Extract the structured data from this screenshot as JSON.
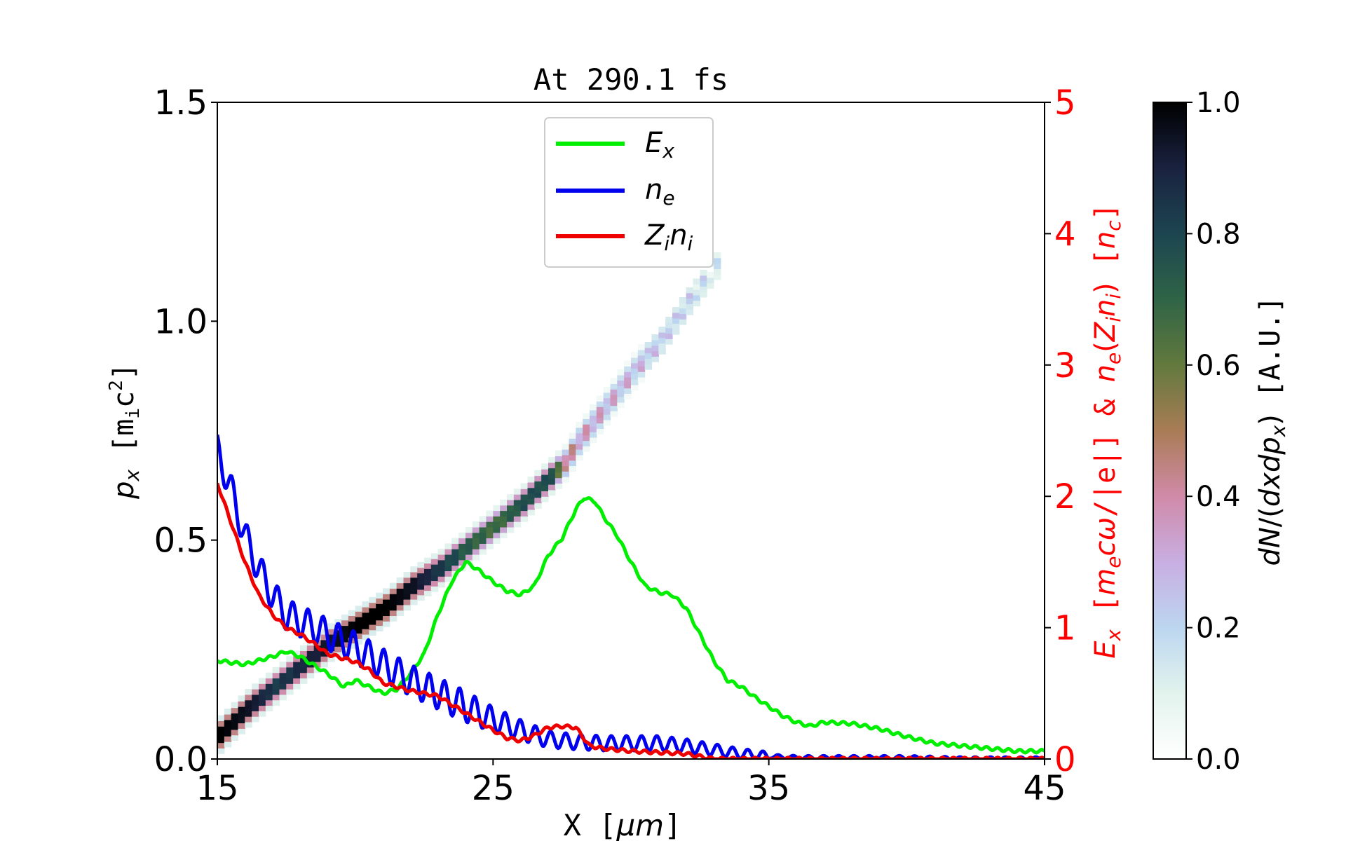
{
  "chart_data": {
    "type": "heatmap",
    "title": "At 290.1 fs",
    "xlabel": "X [μm]",
    "ylabel_left": "p_x [m_i c^2]",
    "ylabel_right": "E_x [m_e c ω / |e|] & n_e (Z_i n_i) [n_c]",
    "colorbar_label": "dN/(dx dp_x) [A.U.]",
    "colormap": "cubehelix_r",
    "colors": {
      "Ex": "#00ee00",
      "ne": "#0000ee",
      "Zini": "#ee0000",
      "right_axis": "#ff0000"
    },
    "xlim": [
      15,
      45
    ],
    "ylim_left": [
      0,
      1.5
    ],
    "ylim_right": [
      0,
      5
    ],
    "clim": [
      0,
      1
    ],
    "x_ticks": [
      "15",
      "25",
      "35",
      "45"
    ],
    "y_ticks_left": [
      "0.0",
      "0.5",
      "1.0",
      "1.5"
    ],
    "y_ticks_right": [
      "0",
      "1",
      "2",
      "3",
      "4",
      "5"
    ],
    "colorbar_ticks": [
      "0.0",
      "0.2",
      "0.4",
      "0.6",
      "0.8",
      "1.0"
    ],
    "legend": {
      "placement": "upper-center",
      "entries": [
        "E_x",
        "n_e",
        "Z_i n_i"
      ]
    },
    "phase_space": {
      "x": [
        15,
        16,
        17,
        18,
        19,
        20,
        21,
        22,
        23,
        24,
        25,
        26,
        27,
        27.5,
        28,
        29,
        30,
        31,
        32,
        33
      ],
      "px": [
        0.05,
        0.11,
        0.16,
        0.21,
        0.26,
        0.3,
        0.34,
        0.39,
        0.43,
        0.48,
        0.53,
        0.58,
        0.64,
        0.67,
        0.72,
        0.8,
        0.88,
        0.95,
        1.04,
        1.12
      ],
      "density": [
        1.0,
        0.95,
        0.85,
        0.9,
        0.95,
        1.0,
        1.0,
        0.95,
        0.85,
        0.75,
        0.7,
        0.8,
        0.8,
        0.5,
        0.42,
        0.38,
        0.35,
        0.3,
        0.28,
        0.2
      ]
    },
    "series": [
      {
        "name": "E_x",
        "x": [
          15,
          16,
          17,
          17.5,
          18,
          19,
          19.6,
          20,
          21,
          21.5,
          22,
          22.5,
          23,
          23.5,
          24,
          24.4,
          25,
          25.5,
          26,
          26.5,
          27,
          27.5,
          28,
          28.3,
          28.7,
          29,
          29.5,
          30,
          30.5,
          31,
          31.5,
          32,
          32.5,
          33,
          33.5,
          34,
          34.5,
          35,
          35.5,
          36,
          36.5,
          37,
          38,
          39,
          40,
          41,
          42,
          43,
          44,
          45
        ],
        "y": [
          0.75,
          0.72,
          0.78,
          0.82,
          0.78,
          0.65,
          0.55,
          0.6,
          0.5,
          0.53,
          0.65,
          0.8,
          1.1,
          1.35,
          1.5,
          1.45,
          1.35,
          1.28,
          1.25,
          1.32,
          1.55,
          1.68,
          1.9,
          1.99,
          1.96,
          1.85,
          1.7,
          1.5,
          1.32,
          1.27,
          1.25,
          1.15,
          0.95,
          0.75,
          0.6,
          0.55,
          0.47,
          0.4,
          0.33,
          0.28,
          0.25,
          0.28,
          0.27,
          0.23,
          0.17,
          0.12,
          0.1,
          0.08,
          0.06,
          0.06
        ]
      },
      {
        "name": "n_e",
        "x": [
          15,
          15.5,
          16,
          16.5,
          17,
          17.5,
          18,
          19,
          20,
          21,
          22,
          23,
          24,
          25,
          26,
          27,
          28,
          29,
          30,
          31,
          32,
          33,
          34,
          35,
          36,
          38,
          40,
          42,
          45
        ],
        "y": [
          2.35,
          2.05,
          1.7,
          1.45,
          1.25,
          1.1,
          1.05,
          0.95,
          0.85,
          0.72,
          0.6,
          0.5,
          0.4,
          0.3,
          0.22,
          0.15,
          0.13,
          0.12,
          0.12,
          0.12,
          0.1,
          0.07,
          0.04,
          0.02,
          0.01,
          0.01,
          0.01,
          0.0,
          0.0
        ]
      },
      {
        "name": "Z_i n_i",
        "x": [
          15,
          15.5,
          16,
          16.5,
          17,
          17.5,
          18,
          18.5,
          19,
          19.5,
          20,
          20.5,
          21,
          22,
          23,
          24,
          25,
          25.5,
          26,
          26.5,
          27,
          27.5,
          28,
          28.5,
          29,
          30,
          31,
          32,
          33,
          34,
          36,
          40,
          45
        ],
        "y": [
          2.1,
          1.8,
          1.5,
          1.25,
          1.1,
          1.0,
          0.95,
          0.88,
          0.8,
          0.77,
          0.74,
          0.68,
          0.58,
          0.52,
          0.48,
          0.35,
          0.22,
          0.16,
          0.14,
          0.18,
          0.24,
          0.25,
          0.24,
          0.1,
          0.08,
          0.06,
          0.05,
          0.04,
          0.0,
          0.0,
          0.0,
          0.0,
          0.0
        ]
      }
    ]
  }
}
